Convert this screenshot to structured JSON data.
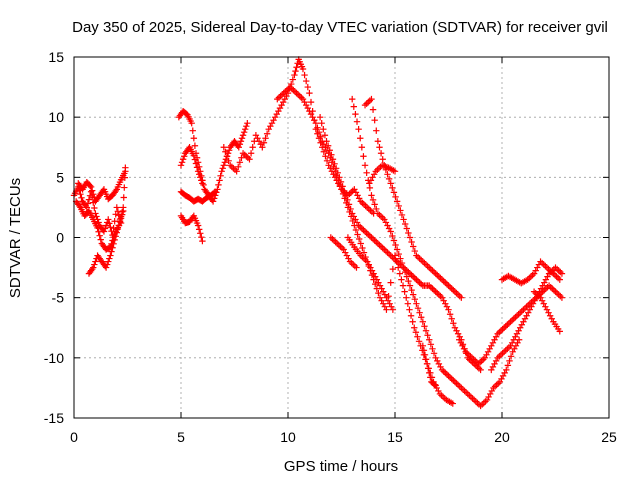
{
  "chart_data": {
    "type": "scatter",
    "title": "Day 350 of 2025, Sidereal Day-to-day VTEC variation (SDTVAR) for receiver gvil",
    "xlabel": "GPS time / hours",
    "ylabel": "SDTVAR / TECUs",
    "xlim": [
      0,
      25
    ],
    "ylim": [
      -15,
      15
    ],
    "xticks": [
      0,
      5,
      10,
      15,
      20,
      25
    ],
    "yticks": [
      -15,
      -10,
      -5,
      0,
      5,
      10,
      15
    ],
    "grid": true,
    "marker": "plus",
    "color": "#ff0000",
    "series": [
      {
        "x": [
          0.0,
          0.2,
          0.4,
          0.6,
          0.8,
          1.0,
          1.2,
          1.4,
          1.6,
          1.8,
          2.0,
          2.2
        ],
        "y": [
          3.5,
          4.2,
          3.0,
          2.5,
          3.8,
          2.0,
          1.0,
          0.5,
          1.5,
          0.2,
          2.5,
          1.2
        ]
      },
      {
        "x": [
          0.1,
          0.3,
          0.5,
          0.7,
          0.9,
          1.1,
          1.3,
          1.5,
          1.7,
          1.9,
          2.1,
          2.3,
          2.4
        ],
        "y": [
          3.0,
          2.5,
          1.8,
          2.2,
          1.5,
          0.8,
          -0.5,
          -1.0,
          -0.8,
          0.3,
          1.0,
          2.5,
          5.8
        ]
      },
      {
        "x": [
          0.7,
          0.9,
          1.1,
          1.3,
          1.5,
          1.7,
          1.9,
          2.1,
          2.3
        ],
        "y": [
          -3.0,
          -2.5,
          -1.5,
          -2.0,
          -2.5,
          -1.5,
          -0.2,
          1.0,
          2.2
        ]
      },
      {
        "x": [
          0.2,
          0.4,
          0.6,
          0.8,
          1.0,
          1.2,
          1.4,
          1.6,
          1.8,
          2.0,
          2.2,
          2.4
        ],
        "y": [
          4.5,
          4.0,
          4.6,
          4.2,
          3.0,
          3.5,
          4.0,
          3.2,
          3.5,
          4.0,
          4.8,
          5.5
        ]
      },
      {
        "x": [
          4.9,
          5.1,
          5.3,
          5.5,
          5.7,
          5.9,
          6.1,
          6.3,
          6.5,
          6.7,
          6.9,
          7.1,
          7.3,
          7.5,
          7.7,
          7.9,
          8.1
        ],
        "y": [
          10.0,
          10.5,
          10.2,
          9.5,
          7.0,
          5.5,
          4.0,
          3.5,
          3.0,
          4.0,
          5.5,
          6.5,
          7.5,
          8.0,
          7.5,
          8.5,
          9.5
        ]
      },
      {
        "x": [
          5.0,
          5.2,
          5.4,
          5.6,
          5.8,
          6.0
        ],
        "y": [
          6.0,
          7.0,
          7.5,
          6.8,
          5.5,
          4.5
        ]
      },
      {
        "x": [
          5.0,
          5.2,
          5.4,
          5.6,
          5.8,
          6.0,
          6.2,
          6.4,
          6.6
        ],
        "y": [
          3.8,
          3.5,
          3.3,
          3.0,
          3.2,
          3.0,
          3.3,
          3.5,
          3.8
        ]
      },
      {
        "x": [
          5.0,
          5.2,
          5.4,
          5.6,
          5.8,
          6.0
        ],
        "y": [
          1.8,
          1.2,
          1.3,
          1.8,
          1.0,
          -0.3
        ]
      },
      {
        "x": [
          7.0,
          7.3,
          7.6,
          7.9,
          8.2,
          8.5,
          8.8,
          9.1,
          9.4,
          9.7,
          10.0,
          10.3,
          10.5,
          10.7,
          11.0,
          11.3,
          11.6,
          11.9,
          12.2,
          12.5,
          12.8,
          13.1,
          13.4,
          13.7,
          14.0
        ],
        "y": [
          7.5,
          6.0,
          5.5,
          7.0,
          6.5,
          8.5,
          7.5,
          9.0,
          10.0,
          11.0,
          12.0,
          13.5,
          14.8,
          14.0,
          12.0,
          9.0,
          7.5,
          6.0,
          5.0,
          4.0,
          3.5,
          4.0,
          3.0,
          2.5,
          2.0
        ]
      },
      {
        "x": [
          9.5,
          9.8,
          10.1,
          10.4,
          10.7,
          11.0,
          11.3,
          11.6,
          11.9,
          12.2,
          12.5,
          12.8,
          13.1,
          13.4,
          13.7,
          14.0,
          14.3,
          14.6,
          15.0,
          15.3,
          15.6,
          15.9,
          16.2,
          16.5,
          16.8,
          17.1,
          17.4,
          17.7
        ],
        "y": [
          11.5,
          12.0,
          12.5,
          12.0,
          11.5,
          10.5,
          9.5,
          8.0,
          7.0,
          5.5,
          4.0,
          2.5,
          1.0,
          -0.5,
          -2.0,
          -3.5,
          -5.0,
          -6.0,
          -1.5,
          -3.5,
          -5.5,
          -7.5,
          -9.0,
          -10.5,
          -12.0,
          -13.0,
          -13.5,
          -13.8
        ]
      },
      {
        "x": [
          11.5,
          11.8,
          12.1,
          12.4,
          12.7,
          13.0,
          13.3,
          13.6,
          13.9,
          14.2,
          14.5,
          14.8,
          15.1,
          15.4,
          15.7,
          16.0,
          16.3,
          16.6,
          16.9,
          17.2,
          17.5,
          17.8,
          18.1,
          18.4,
          18.7,
          19.0
        ],
        "y": [
          10.0,
          8.0,
          6.5,
          5.0,
          3.5,
          2.0,
          1.0,
          0.5,
          0.0,
          -0.5,
          -1.0,
          -1.5,
          -2.0,
          -2.5,
          -3.0,
          -3.5,
          -4.0,
          -4.0,
          -4.5,
          -5.0,
          -6.0,
          -7.5,
          -8.5,
          -10.0,
          -10.5,
          -11.0
        ]
      },
      {
        "x": [
          13.0,
          13.3,
          13.6,
          13.9,
          14.2,
          14.5,
          14.8,
          15.1,
          15.4,
          15.7,
          16.0,
          16.3,
          16.6,
          16.9,
          17.2,
          17.5,
          17.8,
          18.1,
          18.4,
          18.7,
          19.0,
          19.3,
          19.6,
          19.9,
          20.2,
          20.5,
          20.8
        ],
        "y": [
          11.5,
          9.0,
          6.0,
          3.5,
          2.0,
          1.5,
          0.5,
          -1.0,
          -2.5,
          -4.0,
          -5.5,
          -7.0,
          -8.5,
          -10.0,
          -11.0,
          -11.5,
          -12.0,
          -12.5,
          -13.0,
          -13.5,
          -14.0,
          -13.5,
          -12.5,
          -12.0,
          -11.0,
          -9.5,
          -8.5
        ]
      },
      {
        "x": [
          13.6,
          13.9,
          14.2,
          14.5,
          14.8,
          15.1,
          15.4,
          15.7,
          16.0,
          16.3,
          16.6,
          16.9,
          17.2,
          17.5,
          17.8,
          18.1
        ],
        "y": [
          11.0,
          11.5,
          8.0,
          6.0,
          4.5,
          3.0,
          1.5,
          0.0,
          -1.5,
          -2.0,
          -2.5,
          -3.0,
          -3.5,
          -4.0,
          -4.5,
          -5.0
        ]
      },
      {
        "x": [
          13.8,
          14.1,
          14.4,
          14.7,
          15.0
        ],
        "y": [
          4.5,
          5.5,
          6.0,
          5.8,
          5.5
        ]
      },
      {
        "x": [
          12.0,
          12.3,
          12.6,
          12.9,
          13.2
        ],
        "y": [
          0.0,
          -0.5,
          -1.0,
          -2.0,
          -2.5
        ]
      },
      {
        "x": [
          12.8,
          13.1,
          13.4,
          13.7,
          14.0,
          14.3,
          14.6,
          14.9
        ],
        "y": [
          0.0,
          -0.8,
          -1.5,
          -2.0,
          -3.0,
          -4.0,
          -5.0,
          -6.0
        ]
      },
      {
        "x": [
          16.3,
          16.5,
          16.7,
          16.9
        ],
        "y": [
          -9.0,
          -10.5,
          -12.0,
          -12.3
        ]
      },
      {
        "x": [
          18.0,
          18.3,
          18.6,
          18.9,
          19.2,
          19.5,
          19.8,
          20.1,
          20.4,
          20.7,
          21.0,
          21.3,
          21.6,
          21.9,
          22.2,
          22.5,
          22.8
        ],
        "y": [
          -8.5,
          -9.5,
          -10.0,
          -10.5,
          -10.0,
          -9.0,
          -8.0,
          -7.5,
          -7.0,
          -6.5,
          -6.0,
          -5.5,
          -5.0,
          -4.5,
          -4.0,
          -4.5,
          -5.0
        ]
      },
      {
        "x": [
          19.5,
          19.8,
          20.1,
          20.4,
          20.7,
          21.0,
          21.3,
          21.6,
          21.9,
          22.2,
          22.5,
          22.8
        ],
        "y": [
          -11.0,
          -10.0,
          -9.5,
          -9.0,
          -8.0,
          -7.0,
          -6.0,
          -5.0,
          -4.0,
          -3.0,
          -2.5,
          -3.0
        ]
      },
      {
        "x": [
          20.0,
          20.3,
          20.6,
          20.9,
          21.2,
          21.5,
          21.8,
          22.1,
          22.4,
          22.7
        ],
        "y": [
          -3.5,
          -3.2,
          -3.5,
          -3.8,
          -3.5,
          -3.0,
          -2.0,
          -2.5,
          -3.0,
          -3.5
        ]
      },
      {
        "x": [
          21.5,
          21.8,
          22.1,
          22.4,
          22.7
        ],
        "y": [
          -4.5,
          -5.0,
          -6.0,
          -7.0,
          -7.8
        ]
      }
    ]
  }
}
